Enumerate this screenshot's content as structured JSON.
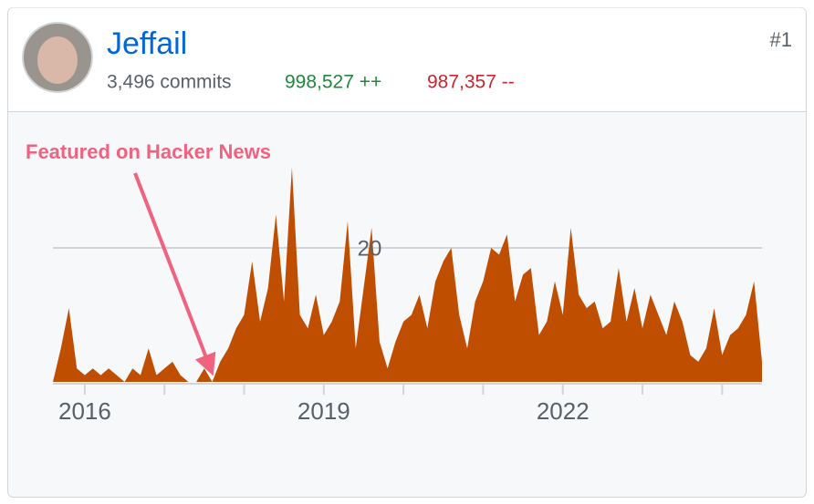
{
  "card": {
    "name": "Jeffail",
    "commits": "3,496 commits",
    "additions": "998,527 ++",
    "deletions": "987,357 --",
    "rank": "#1"
  },
  "chart_data": {
    "type": "area",
    "annotation": "Featured on Hacker News",
    "color": "#bf4e00",
    "x": [
      2015.6,
      2015.7,
      2015.8,
      2015.9,
      2016.0,
      2016.1,
      2016.2,
      2016.3,
      2016.4,
      2016.5,
      2016.6,
      2016.7,
      2016.8,
      2016.9,
      2017.0,
      2017.1,
      2017.2,
      2017.3,
      2017.4,
      2017.5,
      2017.6,
      2017.7,
      2017.8,
      2017.9,
      2018.0,
      2018.1,
      2018.2,
      2018.3,
      2018.4,
      2018.5,
      2018.6,
      2018.7,
      2018.8,
      2018.9,
      2019.0,
      2019.1,
      2019.2,
      2019.3,
      2019.4,
      2019.5,
      2019.6,
      2019.7,
      2019.8,
      2019.9,
      2020.0,
      2020.1,
      2020.2,
      2020.3,
      2020.4,
      2020.5,
      2020.6,
      2020.7,
      2020.8,
      2020.9,
      2021.0,
      2021.1,
      2021.2,
      2021.3,
      2021.4,
      2021.5,
      2021.6,
      2021.7,
      2021.8,
      2021.9,
      2022.0,
      2022.1,
      2022.2,
      2022.3,
      2022.4,
      2022.5,
      2022.6,
      2022.7,
      2022.8,
      2022.9,
      2023.0,
      2023.1,
      2023.2,
      2023.3,
      2023.4,
      2023.5,
      2023.6,
      2023.7,
      2023.8,
      2023.9,
      2024.0,
      2024.1,
      2024.2,
      2024.3,
      2024.4,
      2024.5
    ],
    "values": [
      0,
      5,
      11,
      2,
      1,
      2,
      1,
      2,
      1,
      0,
      2,
      1,
      5,
      1,
      2,
      3,
      1,
      0,
      0,
      2,
      0,
      3,
      5,
      8,
      10,
      18,
      9,
      14,
      25,
      12,
      32,
      10,
      8,
      13,
      7,
      9,
      12,
      24,
      5,
      14,
      23,
      6,
      2,
      6,
      9,
      10,
      13,
      8,
      15,
      18,
      20,
      10,
      5,
      12,
      15,
      20,
      19,
      22,
      12,
      16,
      17,
      7,
      9,
      15,
      10,
      23,
      13,
      11,
      12,
      8,
      9,
      17,
      9,
      14,
      8,
      13,
      10,
      7,
      12,
      9,
      4,
      3,
      5,
      11,
      4,
      7,
      8,
      10,
      15,
      3
    ],
    "xlim": [
      2015.6,
      2024.5
    ],
    "xticks": [
      2016,
      2019,
      2022
    ],
    "xminorticks": [
      2016,
      2017,
      2018,
      2019,
      2020,
      2021,
      2022,
      2023,
      2024
    ],
    "ylim": [
      0,
      35
    ],
    "yticks": [
      20
    ],
    "grid": true
  }
}
